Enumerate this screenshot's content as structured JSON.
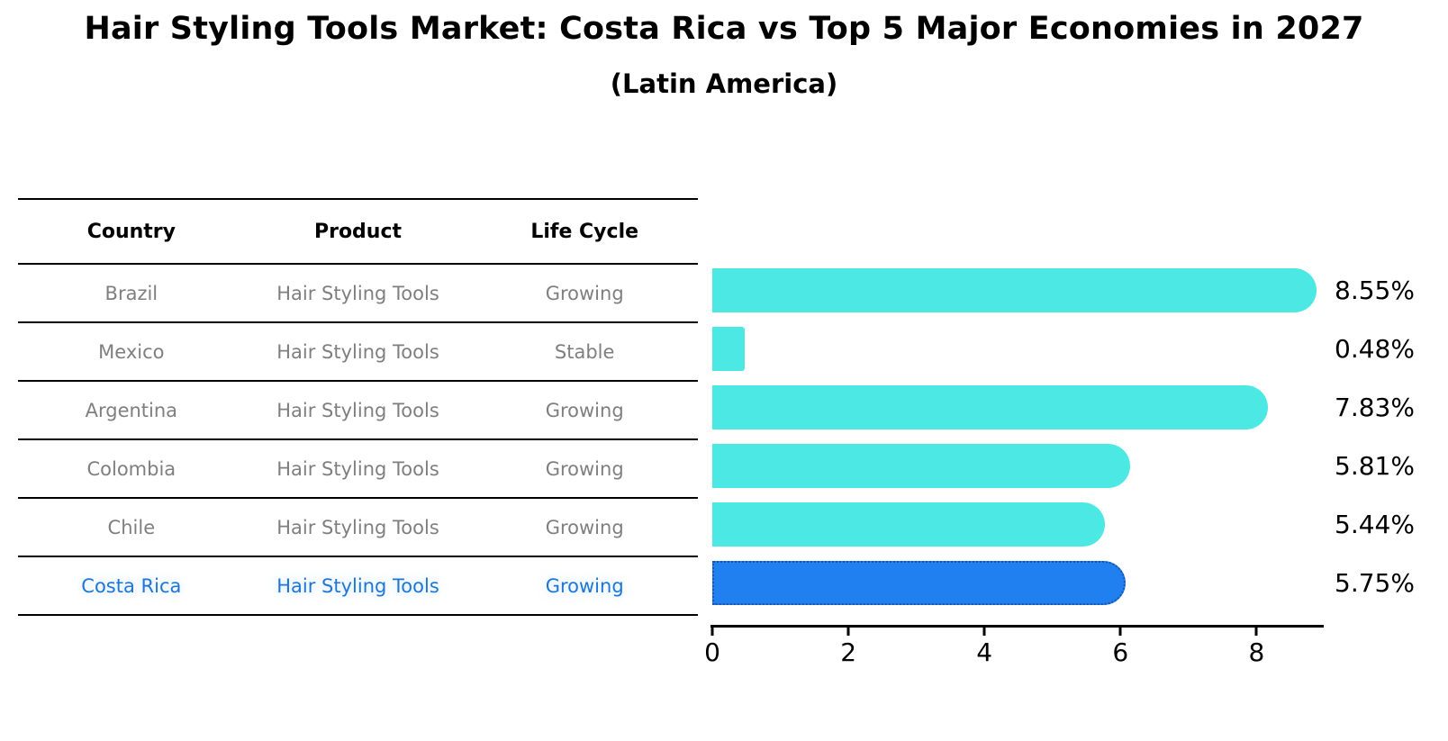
{
  "title": "Hair Styling Tools Market: Costa Rica vs Top 5 Major Economies in 2027",
  "subtitle": "(Latin America)",
  "table": {
    "headers": [
      "Country",
      "Product",
      "Life Cycle"
    ],
    "rows": [
      {
        "country": "Brazil",
        "product": "Hair Styling Tools",
        "life_cycle": "Growing"
      },
      {
        "country": "Mexico",
        "product": "Hair Styling Tools",
        "life_cycle": "Stable"
      },
      {
        "country": "Argentina",
        "product": "Hair Styling Tools",
        "life_cycle": "Growing"
      },
      {
        "country": "Colombia",
        "product": "Hair Styling Tools",
        "life_cycle": "Growing"
      },
      {
        "country": "Chile",
        "product": "Hair Styling Tools",
        "life_cycle": "Growing"
      },
      {
        "country": "Costa Rica",
        "product": "Hair Styling Tools",
        "life_cycle": "Growing"
      }
    ],
    "highlight_index": 5,
    "highlight_text_color": "#2176d2",
    "normal_text_color": "#7f7f7f"
  },
  "chart_data": {
    "type": "bar",
    "orientation": "horizontal",
    "title": "Hair Styling Tools Market: Costa Rica vs Top 5 Major Economies in 2027 (Latin America)",
    "categories": [
      "Brazil",
      "Mexico",
      "Argentina",
      "Colombia",
      "Chile",
      "Costa Rica"
    ],
    "values": [
      8.55,
      0.48,
      7.83,
      5.81,
      5.44,
      5.75
    ],
    "value_labels": [
      "8.55%",
      "0.48%",
      "7.83%",
      "5.81%",
      "5.44%",
      "5.75%"
    ],
    "xlabel": "",
    "ylabel": "",
    "xlim": [
      0,
      9.0
    ],
    "xticks": [
      0,
      2,
      4,
      6,
      8
    ],
    "xtick_labels": [
      "0",
      "2",
      "4",
      "6",
      "8"
    ],
    "grid": false,
    "legend": false,
    "bar_color": "#4be8e4",
    "highlight_index": 5,
    "highlight_color": "#2080f0",
    "highlight_edge_color": "#1a53b0"
  }
}
